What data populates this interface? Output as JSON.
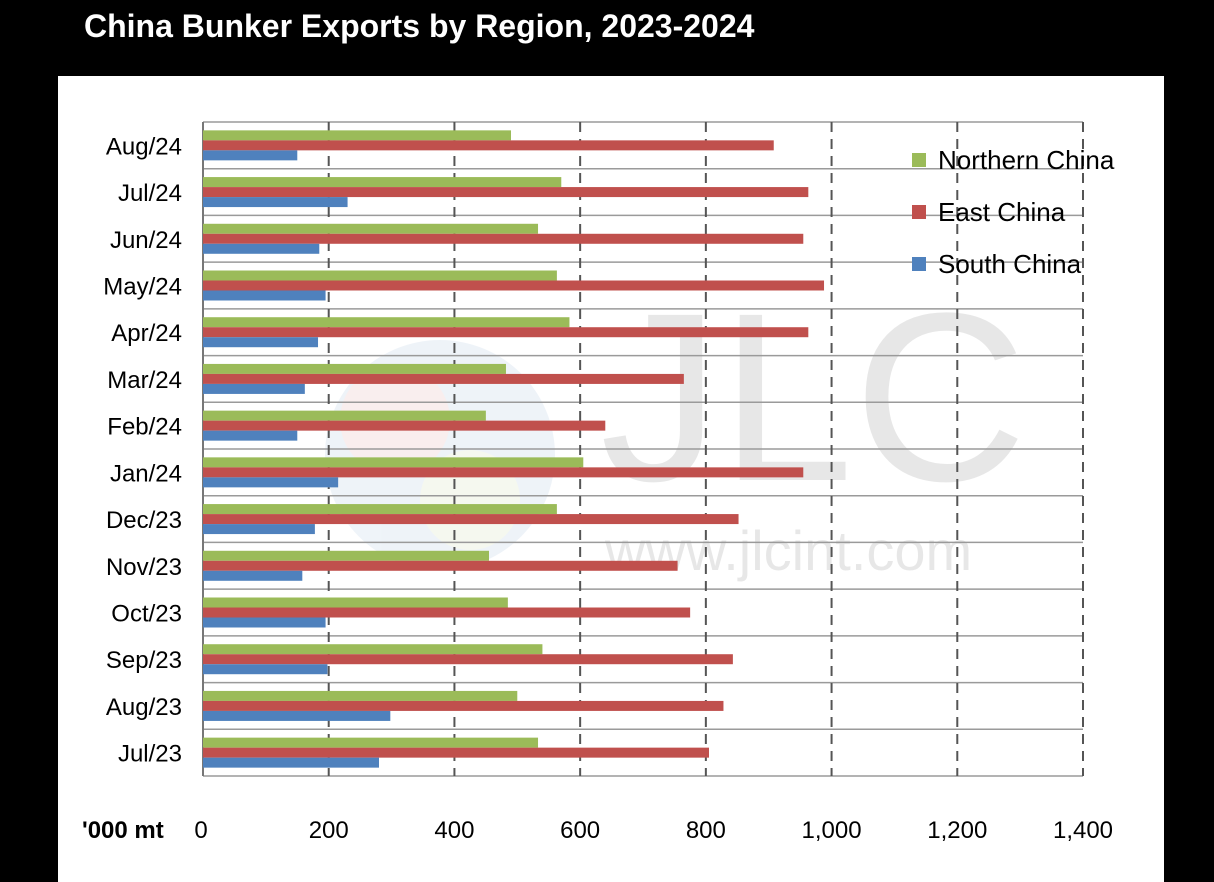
{
  "title": "China Bunker Exports by Region, 2023-2024",
  "unit_label": "'000 mt",
  "watermark": {
    "logo": "JLC",
    "url": "www.jlcint.com"
  },
  "chart_data": {
    "type": "bar",
    "orientation": "horizontal",
    "title": "China Bunker Exports by Region, 2023-2024",
    "xlabel": "'000 mt",
    "ylabel": "",
    "xlim": [
      0,
      1400
    ],
    "ticks": [
      0,
      200,
      400,
      600,
      800,
      1000,
      1200,
      1400
    ],
    "tick_labels": [
      "0",
      "200",
      "400",
      "600",
      "800",
      "1,000",
      "1,200",
      "1,400"
    ],
    "grid": "vertical dashed",
    "legend_position": "top-right",
    "categories": [
      "Aug/24",
      "Jul/24",
      "Jun/24",
      "May/24",
      "Apr/24",
      "Mar/24",
      "Feb/24",
      "Jan/24",
      "Dec/23",
      "Nov/23",
      "Oct/23",
      "Sep/23",
      "Aug/23",
      "Jul/23"
    ],
    "series": [
      {
        "name": "Northern China",
        "color": "#9bbb59",
        "values": [
          490,
          570,
          533,
          563,
          583,
          482,
          450,
          605,
          563,
          455,
          485,
          540,
          500,
          533
        ]
      },
      {
        "name": "East China",
        "color": "#c0504d",
        "values": [
          908,
          963,
          955,
          988,
          963,
          765,
          640,
          955,
          852,
          755,
          775,
          843,
          828,
          805
        ]
      },
      {
        "name": "South China",
        "color": "#4f81bd",
        "values": [
          150,
          230,
          185,
          195,
          183,
          162,
          150,
          215,
          178,
          158,
          195,
          198,
          298,
          280
        ]
      }
    ]
  }
}
